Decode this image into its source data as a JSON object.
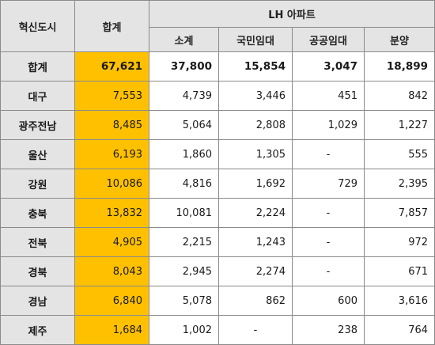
{
  "header": {
    "region_col": "혁신도시",
    "total_col": "합계",
    "group_label": "LH 아파트",
    "sub_cols": [
      "소계",
      "국민임대",
      "공공임대",
      "분양"
    ]
  },
  "summary": {
    "label": "합계",
    "total": "67,621",
    "subtotal": "37,800",
    "national_rental": "15,854",
    "public_rental": "3,047",
    "sale": "18,899"
  },
  "rows": [
    {
      "region": "대구",
      "total": "7,553",
      "subtotal": "4,739",
      "national_rental": "3,446",
      "public_rental": "451",
      "sale": "842"
    },
    {
      "region": "광주전남",
      "total": "8,485",
      "subtotal": "5,064",
      "national_rental": "2,808",
      "public_rental": "1,029",
      "sale": "1,227"
    },
    {
      "region": "울산",
      "total": "6,193",
      "subtotal": "1,860",
      "national_rental": "1,305",
      "public_rental": "-",
      "sale": "555"
    },
    {
      "region": "강원",
      "total": "10,086",
      "subtotal": "4,816",
      "national_rental": "1,692",
      "public_rental": "729",
      "sale": "2,395"
    },
    {
      "region": "충북",
      "total": "13,832",
      "subtotal": "10,081",
      "national_rental": "2,224",
      "public_rental": "-",
      "sale": "7,857"
    },
    {
      "region": "전북",
      "total": "4,905",
      "subtotal": "2,215",
      "national_rental": "1,243",
      "public_rental": "-",
      "sale": "972"
    },
    {
      "region": "경북",
      "total": "8,043",
      "subtotal": "2,945",
      "national_rental": "2,274",
      "public_rental": "-",
      "sale": "671"
    },
    {
      "region": "경남",
      "total": "6,840",
      "subtotal": "5,078",
      "national_rental": "862",
      "public_rental": "600",
      "sale": "3,616"
    },
    {
      "region": "제주",
      "total": "1,684",
      "subtotal": "1,002",
      "national_rental": "-",
      "public_rental": "238",
      "sale": "764"
    }
  ],
  "colors": {
    "header_bg": "#e4e4e4",
    "total_col_bg": "#ffc000",
    "border": "#8a8a8a"
  }
}
